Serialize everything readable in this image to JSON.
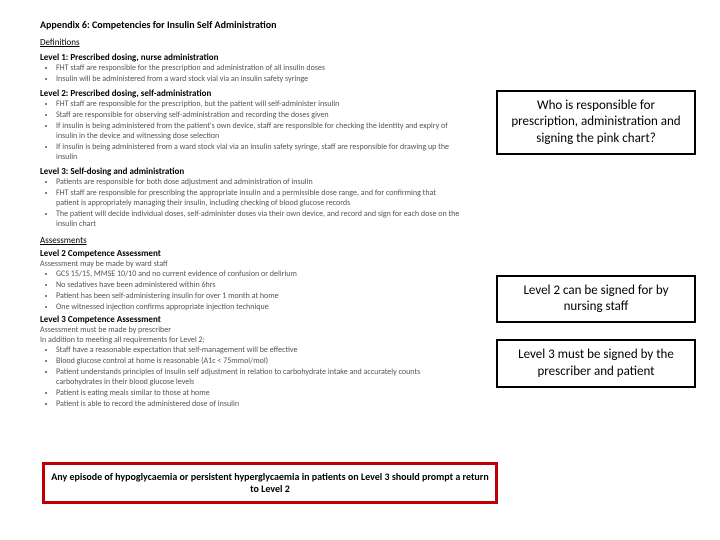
{
  "doc": {
    "appendix_title": "Appendix 6: Competencies for Insulin Self Administration",
    "definitions_label": "Definitions",
    "level1": {
      "title": "Level 1: Prescribed dosing, nurse administration",
      "b1": "FHT staff are responsible for the prescription and administration of all insulin doses",
      "b2": "Insulin will be administered from a ward stock vial via an insulin safety syringe"
    },
    "level2": {
      "title": "Level 2: Prescribed dosing, self-administration",
      "b1": "FHT staff are responsible for the prescription, but the patient will self-administer insulin",
      "b2": "Staff are responsible for observing self-administration and recording the doses given",
      "b3": "If insulin is being administered from the patient's own device, staff are responsible for checking the identity and expiry of insulin in the device and witnessing dose selection",
      "b4": "If insulin is being administered from a ward stock vial via an insulin safety syringe, staff are responsible for drawing up the insulin"
    },
    "level3": {
      "title": "Level 3: Self-dosing and administration",
      "b1": "Patients are responsible for both dose adjustment and administration of insulin",
      "b2": "FHT staff are responsible for prescribing the appropriate insulin and a permissible dose range, and for confirming that patient is appropriately managing their insulin, including checking of blood glucose records",
      "b3": "The patient will decide individual doses, self-administer doses via their own device, and record and sign for each dose on the insulin chart"
    },
    "assessments_label": "Assessments",
    "l2assess": {
      "title": "Level 2 Competence Assessment",
      "sub": "Assessment may be made by ward staff",
      "b1": "GCS 15/15, MMSE 10/10 and no current evidence of confusion or delirium",
      "b2": "No sedatives have been administered within 6hrs",
      "b3": "Patient has been self-administering insulin for over 1 month at home",
      "b4": "One witnessed injection confirms appropriate injection technique"
    },
    "l3assess": {
      "title": "Level 3 Competence Assessment",
      "sub1": "Assessment must be made by prescriber",
      "sub2": "In addition to meeting all requirements for Level 2:",
      "b1": "Staff have a reasonable expectation that self-management will be effective",
      "b2": "Blood glucose control at home is reasonable (A1c < 75mmol/mol)",
      "b3": "Patient understands principles of insulin self adjustment in relation to carbohydrate intake and accurately counts carbohydrates in their blood glucose levels",
      "b4": "Patient is eating meals similar to those at home",
      "b5": "Patient is able to record the administered dose of insulin"
    }
  },
  "callouts": {
    "c1": "Who is responsible for prescription, administration and signing the pink chart?",
    "c2": "Level 2 can be signed for by nursing staff",
    "c3": "Level 3 must be signed by the prescriber and patient"
  },
  "warning": "Any episode of hypoglycaemia or persistent hyperglycaemia in patients on Level 3 should prompt a return to Level 2",
  "colors": {
    "warn_border": "#c00000",
    "box_border": "#000000",
    "bg": "#ffffff"
  }
}
